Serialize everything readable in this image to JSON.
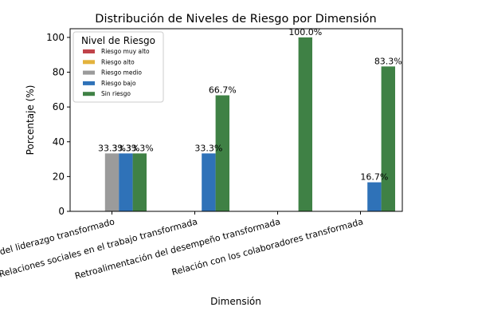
{
  "chart_data": {
    "type": "bar",
    "title": "Distribución de Niveles de Riesgo por Dimensión",
    "xlabel": "Dimensión",
    "ylabel": "Porcentaje (%)",
    "ylim": [
      0,
      105
    ],
    "yticks": [
      0,
      20,
      40,
      60,
      80,
      100
    ],
    "categories": [
      "Características del liderazgo transformado",
      "Relaciones sociales en el trabajo transformada",
      "Retroalimentación del desempeño transformada",
      "Relación con los colaboradores transformada"
    ],
    "legend": {
      "title": "Nivel de Riesgo",
      "placement": "top-left"
    },
    "grid": false,
    "series": [
      {
        "name": "Riesgo muy alto",
        "color": "#c0434a",
        "values": [
          0,
          0,
          0,
          0
        ]
      },
      {
        "name": "Riesgo alto",
        "color": "#e3b23c",
        "values": [
          0,
          0,
          0,
          0
        ]
      },
      {
        "name": "Riesgo medio",
        "color": "#9b9b9b",
        "values": [
          33.3,
          0,
          0,
          0
        ]
      },
      {
        "name": "Riesgo bajo",
        "color": "#2f72b8",
        "values": [
          33.3,
          33.3,
          0,
          16.7
        ]
      },
      {
        "name": "Sin riesgo",
        "color": "#3f8145",
        "values": [
          33.3,
          66.7,
          100.0,
          83.3
        ]
      }
    ]
  }
}
